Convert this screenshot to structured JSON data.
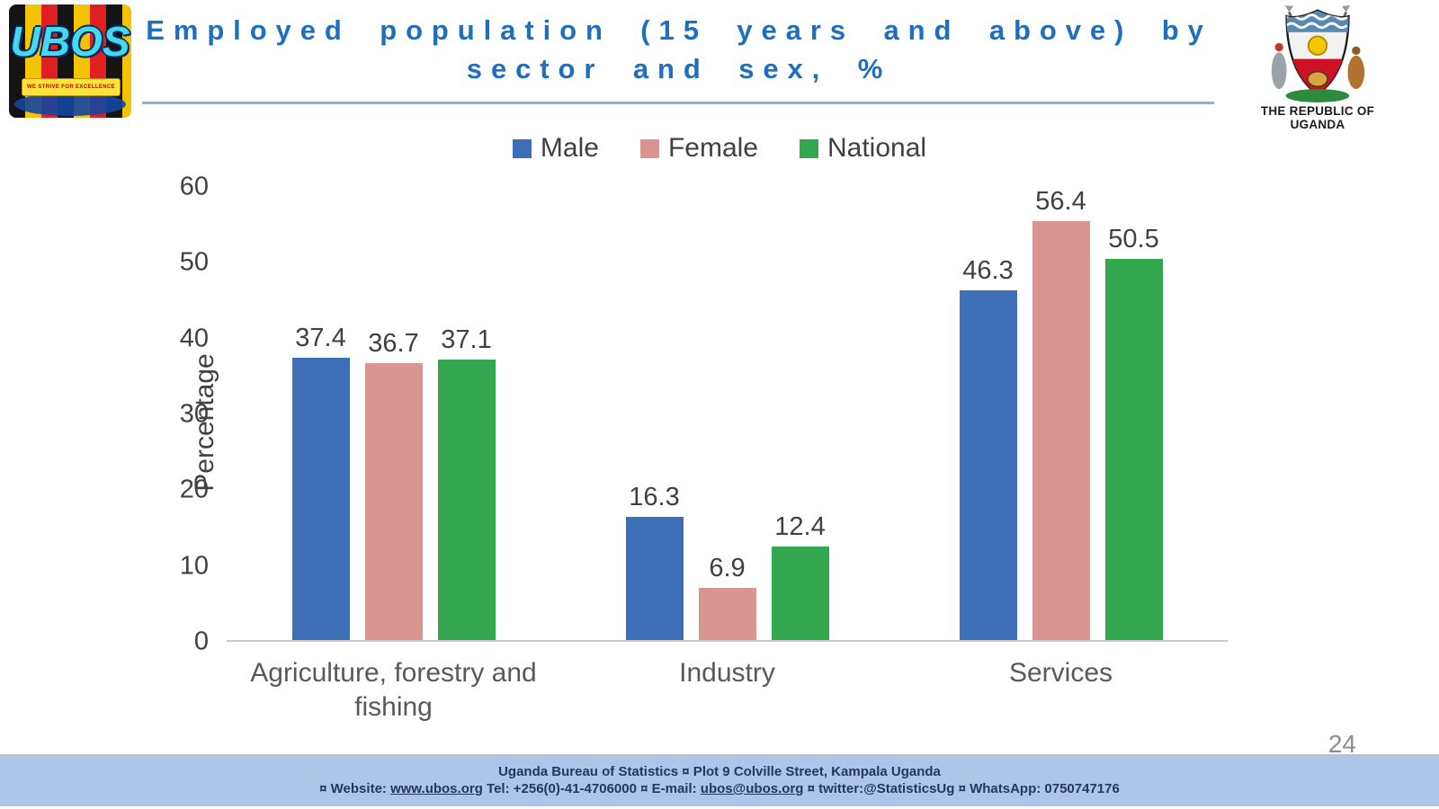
{
  "header": {
    "title_line1": "Employed population (15 years and above) by",
    "title_line2": "sector and sex, %",
    "ubos_logo_text": "UBOS",
    "ubos_motto": "WE STRIVE FOR EXCELLENCE",
    "republic_label": "THE REPUBLIC OF UGANDA"
  },
  "chart_data": {
    "type": "bar",
    "title": "Employed population (15 years and above) by sector and sex, %",
    "categories": [
      "Agriculture, forestry and fishing",
      "Industry",
      "Services"
    ],
    "series": [
      {
        "name": "Male",
        "color": "#3d6eb8",
        "values": [
          37.4,
          16.3,
          46.3
        ]
      },
      {
        "name": "Female",
        "color": "#d9958f",
        "values": [
          36.7,
          6.9,
          56.4
        ]
      },
      {
        "name": "National",
        "color": "#33a850",
        "values": [
          37.1,
          12.4,
          50.5
        ]
      }
    ],
    "xlabel": "",
    "ylabel": "Percentage",
    "ylim": [
      0,
      60
    ],
    "yticks": [
      0,
      10,
      20,
      30,
      40,
      50,
      60
    ],
    "grid": false,
    "legend_position": "top",
    "value_labels": true
  },
  "footer": {
    "line1": "Uganda Bureau of Statistics ¤ Plot 9 Colville Street, Kampala Uganda",
    "line2_prefix": "¤ Website: ",
    "website": "www.ubos.org",
    "line2_mid": " Tel: +256(0)-41-4706000 ¤ E-mail: ",
    "email": "ubos@ubos.org",
    "line2_suffix": " ¤ twitter:@StatisticsUg ¤ WhatsApp: 0750747176"
  },
  "page_number": "24"
}
